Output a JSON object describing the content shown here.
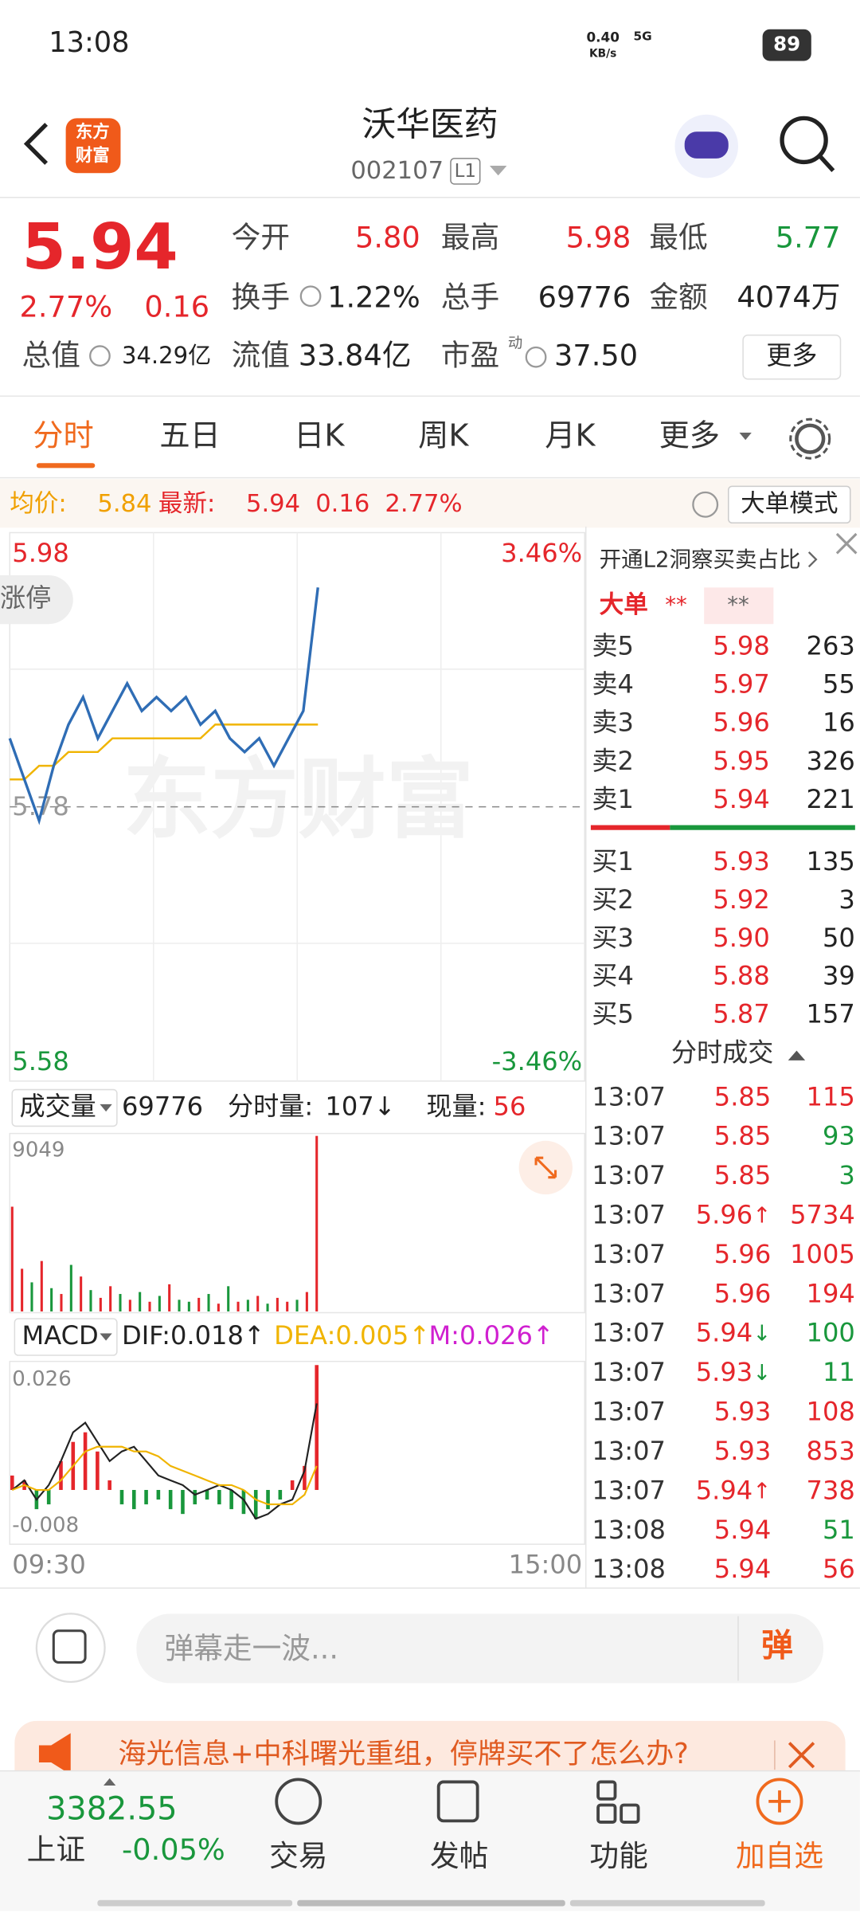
{
  "status_bar": {
    "time": "13:08",
    "net_speed": "0.40",
    "net_unit": "KB/s",
    "network": "5G",
    "battery": "89"
  },
  "header": {
    "logo_top": "东方",
    "logo_bottom": "财富",
    "title": "沃华医药",
    "code": "002107",
    "level": "L1"
  },
  "quote": {
    "price": "5.94",
    "change_pct": "2.77%",
    "change": "0.16",
    "color": "#e5262b",
    "stats": [
      {
        "label": "今开",
        "value": "5.80",
        "color": "#e5262b"
      },
      {
        "label": "最高",
        "value": "5.98",
        "color": "#e5262b"
      },
      {
        "label": "最低",
        "value": "5.77",
        "color": "#19973c"
      },
      {
        "label": "换手",
        "value": "1.22%",
        "color": "#222222"
      },
      {
        "label": "总手",
        "value": "69776",
        "color": "#222222"
      },
      {
        "label": "金额",
        "value": "4074万",
        "color": "#222222"
      },
      {
        "label": "总值",
        "value": "34.29亿",
        "color": "#222222"
      },
      {
        "label": "流值",
        "value": "33.84亿",
        "color": "#222222"
      },
      {
        "label": "市盈",
        "value": "37.50",
        "color": "#222222"
      }
    ],
    "pe_tag": "动",
    "more": "更多"
  },
  "tabs": [
    "分时",
    "五日",
    "日K",
    "周K",
    "月K",
    "更多"
  ],
  "info_bar": {
    "avg_label": "均价:",
    "avg": "5.84",
    "latest_label": "最新:",
    "latest": "5.94",
    "change": "0.16",
    "change_pct": "2.77%",
    "mode": "大单模式"
  },
  "chart": {
    "type": "line",
    "price_high": "5.98",
    "pct_high": "3.46%",
    "price_low": "5.58",
    "pct_low": "-3.46%",
    "base": "5.78",
    "limit_tag": "涨停",
    "watermark": "东方财富",
    "ylim": [
      5.58,
      5.98
    ],
    "series": [
      {
        "name": "价格",
        "color": "#2f6db5",
        "values": [
          5.83,
          5.8,
          5.77,
          5.81,
          5.84,
          5.86,
          5.83,
          5.85,
          5.87,
          5.85,
          5.86,
          5.85,
          5.86,
          5.84,
          5.85,
          5.83,
          5.82,
          5.83,
          5.81,
          5.83,
          5.85,
          5.94
        ]
      },
      {
        "name": "均价",
        "color": "#f0b400",
        "values": [
          5.8,
          5.8,
          5.81,
          5.81,
          5.82,
          5.82,
          5.82,
          5.83,
          5.83,
          5.83,
          5.83,
          5.83,
          5.83,
          5.83,
          5.84,
          5.84,
          5.84,
          5.84,
          5.84,
          5.84,
          5.84,
          5.84
        ]
      }
    ],
    "x_start": "09:30",
    "x_end": "15:00"
  },
  "volume": {
    "type": "bar",
    "label": "成交量",
    "total": "69776",
    "minute_label": "分时量:",
    "minute": "107↓",
    "current_label": "现量:",
    "current": "56",
    "ylim": [
      0,
      9049
    ],
    "yticks": [
      9049
    ],
    "values": [
      5400,
      2200,
      1500,
      2600,
      1200,
      900,
      2400,
      1800,
      1100,
      700,
      1300,
      900,
      600,
      1000,
      500,
      800,
      1400,
      600,
      500,
      700,
      900,
      400,
      1300,
      500,
      600,
      800,
      400,
      700,
      500,
      600,
      1000,
      9049
    ],
    "colors": [
      "#e5262b",
      "#e5262b",
      "#19973c",
      "#e5262b",
      "#19973c",
      "#e5262b",
      "#19973c",
      "#e5262b",
      "#19973c",
      "#e5262b",
      "#e5262b",
      "#19973c",
      "#e5262b",
      "#19973c",
      "#e5262b",
      "#19973c",
      "#e5262b",
      "#19973c",
      "#19973c",
      "#e5262b",
      "#19973c",
      "#e5262b",
      "#19973c",
      "#e5262b",
      "#19973c",
      "#e5262b",
      "#19973c",
      "#e5262b",
      "#e5262b",
      "#19973c",
      "#e5262b",
      "#e5262b"
    ]
  },
  "macd": {
    "type": "bar",
    "label": "MACD",
    "dif": "DIF:0.018↑",
    "dea": "DEA:0.005↑",
    "m": "M:0.026↑",
    "ylim": [
      -0.008,
      0.026
    ],
    "yticks": [
      0.026,
      -0.008
    ],
    "up_color": "#e5262b",
    "down_color": "#19973c",
    "dif_color": "#222222",
    "dea_color": "#f0b400",
    "m_color": "#d020d0",
    "hist": [
      0.003,
      0.002,
      -0.004,
      -0.003,
      0.006,
      0.01,
      0.012,
      0.008,
      0.002,
      -0.003,
      -0.004,
      -0.003,
      -0.002,
      -0.004,
      -0.005,
      -0.003,
      -0.002,
      -0.003,
      -0.004,
      -0.005,
      -0.006,
      -0.004,
      -0.002,
      0.002,
      0.005,
      0.026
    ],
    "dif_values": [
      0.0,
      0.002,
      -0.002,
      0.001,
      0.006,
      0.012,
      0.014,
      0.01,
      0.006,
      0.008,
      0.009,
      0.006,
      0.003,
      0.002,
      0.001,
      -0.001,
      0.0,
      0.001,
      0.0,
      -0.002,
      -0.006,
      -0.005,
      -0.003,
      -0.002,
      0.004,
      0.018
    ],
    "dea_values": [
      0.0,
      0.001,
      0.0,
      0.0,
      0.002,
      0.005,
      0.008,
      0.009,
      0.009,
      0.009,
      0.008,
      0.008,
      0.007,
      0.005,
      0.004,
      0.003,
      0.002,
      0.001,
      0.001,
      0.0,
      -0.002,
      -0.003,
      -0.003,
      -0.003,
      -0.001,
      0.005
    ]
  },
  "order_book": {
    "promo": "开通L2洞察买卖占比",
    "big_order": "大单",
    "stars_a": "**",
    "stars_b": "**",
    "asks": [
      {
        "label": "卖5",
        "price": "5.98",
        "vol": "263"
      },
      {
        "label": "卖4",
        "price": "5.97",
        "vol": "55"
      },
      {
        "label": "卖3",
        "price": "5.96",
        "vol": "16"
      },
      {
        "label": "卖2",
        "price": "5.95",
        "vol": "326"
      },
      {
        "label": "卖1",
        "price": "5.94",
        "vol": "221"
      }
    ],
    "bids": [
      {
        "label": "买1",
        "price": "5.93",
        "vol": "135"
      },
      {
        "label": "买2",
        "price": "5.92",
        "vol": "3"
      },
      {
        "label": "买3",
        "price": "5.90",
        "vol": "50"
      },
      {
        "label": "买4",
        "price": "5.88",
        "vol": "39"
      },
      {
        "label": "买5",
        "price": "5.87",
        "vol": "157"
      }
    ]
  },
  "trades": {
    "title": "分时成交",
    "rows": [
      {
        "time": "13:07",
        "price": "5.85",
        "vol": "115",
        "vol_color": "#e5262b"
      },
      {
        "time": "13:07",
        "price": "5.85",
        "vol": "93",
        "vol_color": "#19973c"
      },
      {
        "time": "13:07",
        "price": "5.85",
        "vol": "3",
        "vol_color": "#19973c"
      },
      {
        "time": "13:07",
        "price": "5.96",
        "arrow": "↑",
        "arrow_color": "#e5262b",
        "vol": "5734",
        "vol_color": "#e5262b"
      },
      {
        "time": "13:07",
        "price": "5.96",
        "vol": "1005",
        "vol_color": "#e5262b"
      },
      {
        "time": "13:07",
        "price": "5.96",
        "vol": "194",
        "vol_color": "#e5262b"
      },
      {
        "time": "13:07",
        "price": "5.94",
        "arrow": "↓",
        "arrow_color": "#19973c",
        "vol": "100",
        "vol_color": "#19973c"
      },
      {
        "time": "13:07",
        "price": "5.93",
        "arrow": "↓",
        "arrow_color": "#19973c",
        "vol": "11",
        "vol_color": "#19973c"
      },
      {
        "time": "13:07",
        "price": "5.93",
        "vol": "108",
        "vol_color": "#e5262b"
      },
      {
        "time": "13:07",
        "price": "5.93",
        "vol": "853",
        "vol_color": "#e5262b"
      },
      {
        "time": "13:07",
        "price": "5.94",
        "arrow": "↑",
        "arrow_color": "#e5262b",
        "vol": "738",
        "vol_color": "#e5262b"
      },
      {
        "time": "13:08",
        "price": "5.94",
        "vol": "51",
        "vol_color": "#19973c"
      },
      {
        "time": "13:08",
        "price": "5.94",
        "vol": "56",
        "vol_color": "#e5262b"
      }
    ]
  },
  "bottom": {
    "comment_placeholder": "弹幕走一波...",
    "danmu": "弹",
    "ad": "海光信息+中科曙光重组，停牌买不了怎么办?",
    "index_value": "3382.55",
    "index_name": "上证",
    "index_change": "-0.05%",
    "nav": [
      "交易",
      "发帖",
      "功能",
      "加自选"
    ]
  }
}
